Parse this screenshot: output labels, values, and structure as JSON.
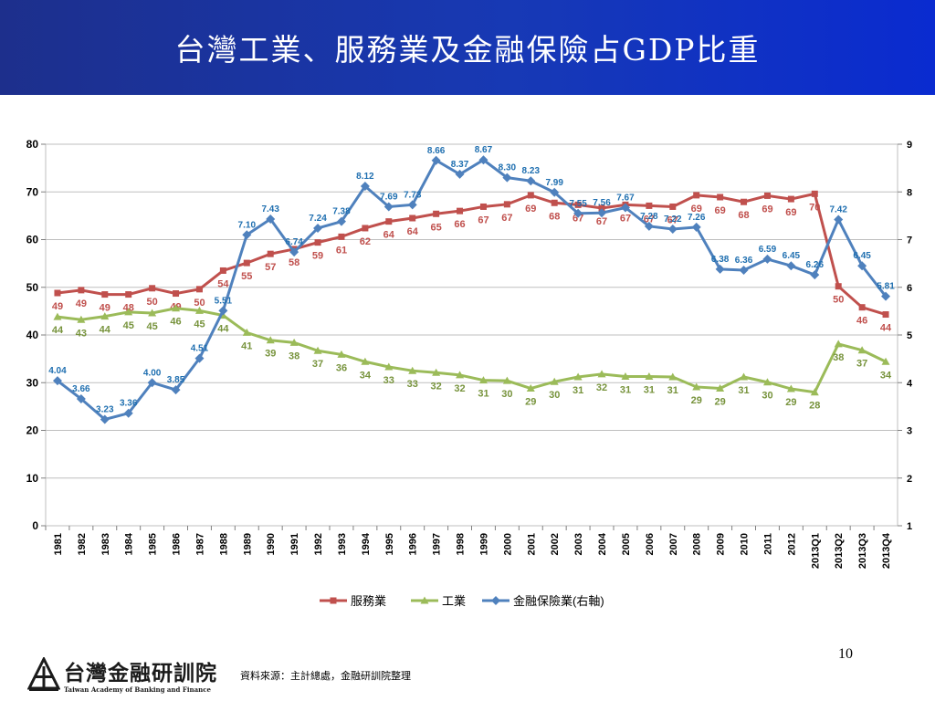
{
  "header": {
    "title": "台灣工業、服務業及金融保險占GDP比重"
  },
  "footer": {
    "page_number": "10",
    "logo_text": "台灣金融研訓院",
    "logo_subtext": "Taiwan Academy of Banking and Finance",
    "source": "資料來源：主計總處，金融研訓院整理"
  },
  "colors": {
    "banner": "#1739b5",
    "services": "#c0504d",
    "industry": "#9bbb59",
    "finance": "#4f81bd"
  },
  "chart_data": {
    "type": "line",
    "categories": [
      "1981",
      "1982",
      "1983",
      "1984",
      "1985",
      "1986",
      "1987",
      "1988",
      "1989",
      "1990",
      "1991",
      "1992",
      "1993",
      "1994",
      "1995",
      "1996",
      "1997",
      "1998",
      "1999",
      "2000",
      "2001",
      "2002",
      "2003",
      "2004",
      "2005",
      "2006",
      "2007",
      "2008",
      "2009",
      "2010",
      "2011",
      "2012",
      "2013Q1",
      "2013Q2",
      "2013Q3",
      "2013Q4"
    ],
    "y_left": {
      "min": 0,
      "max": 80,
      "ticks": [
        "0",
        "10",
        "20",
        "30",
        "40",
        "50",
        "60",
        "70",
        "80"
      ]
    },
    "y_right": {
      "min": 1,
      "max": 9,
      "ticks": [
        "1",
        "2",
        "3",
        "4",
        "5",
        "6",
        "7",
        "8",
        "9"
      ]
    },
    "grid": true,
    "legend_position": "bottom",
    "series": [
      {
        "name": "服務業",
        "axis": "left",
        "color": "#c0504d",
        "marker": "square",
        "values": [
          48.8,
          49.4,
          48.5,
          48.5,
          49.8,
          48.7,
          49.6,
          53.5,
          55.1,
          57.0,
          58.0,
          59.4,
          60.6,
          62.4,
          63.8,
          64.5,
          65.4,
          66.0,
          66.9,
          67.4,
          69.3,
          67.7,
          67.3,
          66.6,
          67.3,
          67.1,
          66.9,
          69.3,
          68.9,
          67.9,
          69.2,
          68.5,
          69.6,
          50.2,
          45.8,
          44.3
        ],
        "labels": [
          "49",
          "49",
          "49",
          "48",
          "50",
          "49",
          "50",
          "54",
          "55",
          "57",
          "58",
          "59",
          "61",
          "62",
          "64",
          "64",
          "65",
          "66",
          "67",
          "67",
          "69",
          "68",
          "67",
          "67",
          "67",
          "67",
          "67",
          "69",
          "69",
          "68",
          "69",
          "69",
          "70",
          "50",
          "46",
          "44"
        ]
      },
      {
        "name": "工業",
        "axis": "left",
        "color": "#9bbb59",
        "marker": "triangle",
        "values": [
          43.8,
          43.2,
          43.9,
          44.8,
          44.6,
          45.6,
          45.1,
          44.1,
          40.5,
          38.9,
          38.4,
          36.7,
          35.9,
          34.4,
          33.3,
          32.5,
          32.1,
          31.6,
          30.5,
          30.4,
          28.8,
          30.2,
          31.2,
          31.8,
          31.3,
          31.3,
          31.2,
          29.1,
          28.8,
          31.2,
          30.1,
          28.7,
          28.0,
          38.1,
          36.8,
          34.4
        ],
        "labels": [
          "44",
          "43",
          "44",
          "45",
          "45",
          "46",
          "45",
          "44",
          "41",
          "39",
          "38",
          "37",
          "36",
          "34",
          "33",
          "33",
          "32",
          "32",
          "31",
          "30",
          "29",
          "30",
          "31",
          "32",
          "31",
          "31",
          "31",
          "29",
          "29",
          "31",
          "30",
          "29",
          "28",
          "38",
          "37",
          "34"
        ]
      },
      {
        "name": "金融保險業(右軸)",
        "axis": "right",
        "color": "#4f81bd",
        "marker": "diamond",
        "values": [
          4.04,
          3.66,
          3.23,
          3.36,
          4.0,
          3.85,
          4.51,
          5.51,
          7.1,
          7.43,
          6.74,
          7.24,
          7.38,
          8.12,
          7.69,
          7.73,
          8.66,
          8.37,
          8.67,
          8.3,
          8.23,
          7.99,
          7.55,
          7.56,
          7.67,
          7.28,
          7.22,
          7.26,
          6.38,
          6.36,
          6.59,
          6.45,
          6.26,
          7.42,
          6.45,
          5.81
        ],
        "labels": [
          "4.04",
          "3.66",
          "3.23",
          "3.36",
          "4.00",
          "3.85",
          "4.51",
          "5.51",
          "7.10",
          "7.43",
          "6.74",
          "7.24",
          "7.38",
          "8.12",
          "7.69",
          "7.73",
          "8.66",
          "8.37",
          "8.67",
          "8.30",
          "8.23",
          "7.99",
          "7.55",
          "7.56",
          "7.67",
          "7.28",
          "7.22",
          "7.26",
          "6.38",
          "6.36",
          "6.59",
          "6.45",
          "6.26",
          "7.42",
          "6.45",
          "5.81"
        ]
      }
    ]
  }
}
